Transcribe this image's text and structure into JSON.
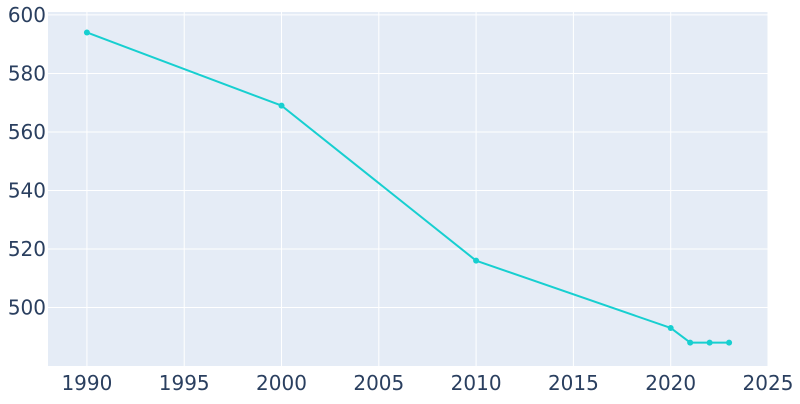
{
  "chart_data": {
    "type": "line",
    "title": "",
    "xlabel": "",
    "ylabel": "",
    "xlim": [
      1988,
      2025
    ],
    "ylim": [
      480,
      601
    ],
    "grid": true,
    "x_ticks": [
      1990,
      1995,
      2000,
      2005,
      2010,
      2015,
      2020,
      2025
    ],
    "y_ticks": [
      500,
      520,
      540,
      560,
      580,
      600
    ],
    "series": [
      {
        "color": "#17cfd0",
        "points": [
          {
            "x": 1990,
            "y": 594
          },
          {
            "x": 2000,
            "y": 569
          },
          {
            "x": 2010,
            "y": 516
          },
          {
            "x": 2020,
            "y": 493
          },
          {
            "x": 2021,
            "y": 488
          },
          {
            "x": 2022,
            "y": 488
          },
          {
            "x": 2023,
            "y": 488
          }
        ]
      }
    ],
    "colors": {
      "plot_background": "#e5ecf6",
      "grid": "#ffffff",
      "tick_text": "#2a3f5f"
    }
  }
}
